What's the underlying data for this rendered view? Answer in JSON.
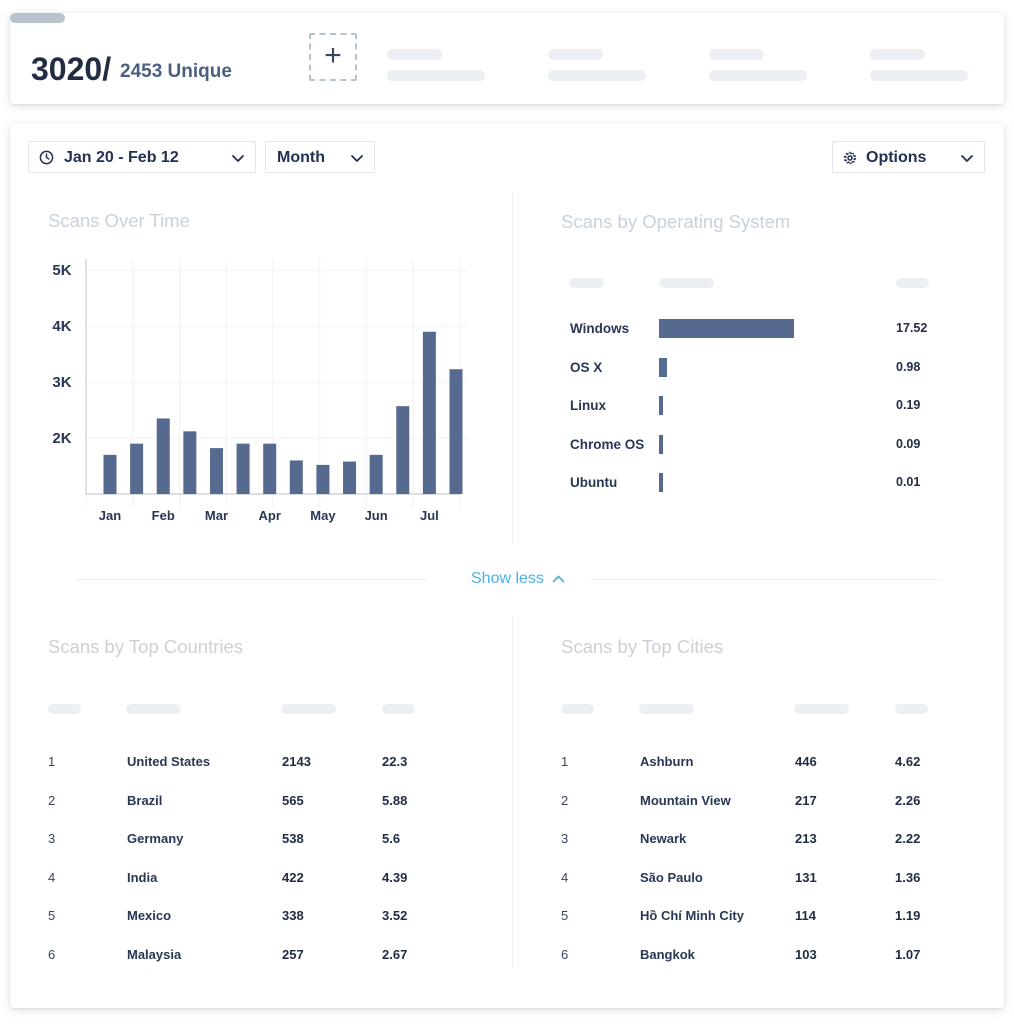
{
  "stats": {
    "total": "3020/",
    "unique": "2453 Unique"
  },
  "controls": {
    "date_range": "Jan 20 - Feb 12",
    "period": "Month",
    "options": "Options"
  },
  "scans_over_time": {
    "title": "Scans Over Time"
  },
  "chart_data": {
    "type": "bar",
    "title": "Scans Over Time",
    "xlabel": "",
    "ylabel": "",
    "ylim": [
      1000,
      5200
    ],
    "yticks": [
      "2K",
      "3K",
      "4K",
      "5K"
    ],
    "ytick_values": [
      2000,
      3000,
      4000,
      5000
    ],
    "xtick_labels": [
      "Jan",
      "Feb",
      "Mar",
      "Apr",
      "May",
      "Jun",
      "Jul"
    ],
    "grid": true,
    "values": [
      1700,
      1900,
      2350,
      2120,
      1820,
      1900,
      1900,
      1600,
      1520,
      1580,
      1700,
      2570,
      3900,
      3230
    ]
  },
  "os": {
    "title": "Scans by Operating System",
    "rows": [
      {
        "name": "Windows",
        "value": "17.52",
        "num": 17.52
      },
      {
        "name": "OS X",
        "value": "0.98",
        "num": 0.98
      },
      {
        "name": "Linux",
        "value": "0.19",
        "num": 0.19
      },
      {
        "name": "Chrome OS",
        "value": "0.09",
        "num": 0.09
      },
      {
        "name": "Ubuntu",
        "value": "0.01",
        "num": 0.01
      }
    ]
  },
  "toggle": {
    "label": "Show less"
  },
  "countries": {
    "title": "Scans by Top Countries",
    "rows": [
      {
        "rank": "1",
        "name": "United States",
        "scans": "2143",
        "pct": "22.3"
      },
      {
        "rank": "2",
        "name": "Brazil",
        "scans": "565",
        "pct": "5.88"
      },
      {
        "rank": "3",
        "name": "Germany",
        "scans": "538",
        "pct": "5.6"
      },
      {
        "rank": "4",
        "name": "India",
        "scans": "422",
        "pct": "4.39"
      },
      {
        "rank": "5",
        "name": "Mexico",
        "scans": "338",
        "pct": "3.52"
      },
      {
        "rank": "6",
        "name": "Malaysia",
        "scans": "257",
        "pct": "2.67"
      }
    ]
  },
  "cities": {
    "title": "Scans by Top Cities",
    "rows": [
      {
        "rank": "1",
        "name": "Ashburn",
        "scans": "446",
        "pct": "4.62"
      },
      {
        "rank": "2",
        "name": "Mountain View",
        "scans": "217",
        "pct": "2.26"
      },
      {
        "rank": "3",
        "name": "Newark",
        "scans": "213",
        "pct": "2.22"
      },
      {
        "rank": "4",
        "name": "São Paulo",
        "scans": "131",
        "pct": "1.36"
      },
      {
        "rank": "5",
        "name": "Hồ Chí Minh City",
        "scans": "114",
        "pct": "1.19"
      },
      {
        "rank": "6",
        "name": "Bangkok",
        "scans": "103",
        "pct": "1.07"
      }
    ]
  },
  "colors": {
    "bar": "#56698e",
    "link": "#49b3e3",
    "muted_title": "#c9d1da"
  }
}
